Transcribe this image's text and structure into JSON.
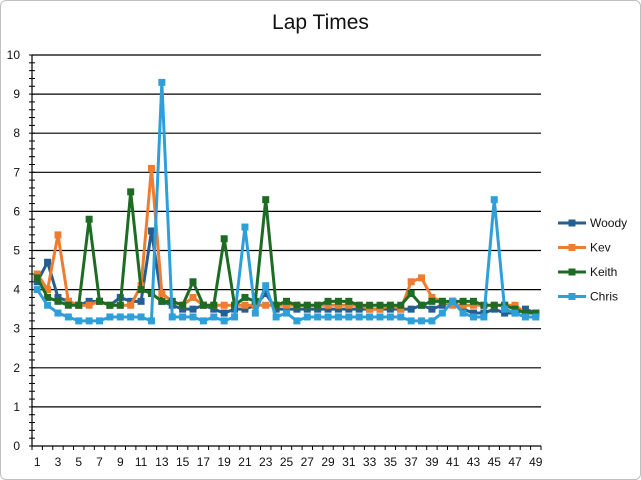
{
  "chart_data": {
    "type": "line",
    "title": "Lap Times",
    "xlabel": "",
    "ylabel": "",
    "ylim": [
      0,
      10
    ],
    "y_ticks": [
      0,
      1,
      2,
      3,
      4,
      5,
      6,
      7,
      8,
      9,
      10
    ],
    "x_tick_labels": [
      1,
      3,
      5,
      7,
      9,
      11,
      13,
      15,
      17,
      19,
      21,
      23,
      25,
      27,
      29,
      31,
      33,
      35,
      37,
      39,
      41,
      43,
      45,
      47,
      49
    ],
    "x": [
      1,
      2,
      3,
      4,
      5,
      6,
      7,
      8,
      9,
      10,
      11,
      12,
      13,
      14,
      15,
      16,
      17,
      18,
      19,
      20,
      21,
      22,
      23,
      24,
      25,
      26,
      27,
      28,
      29,
      30,
      31,
      32,
      33,
      34,
      35,
      36,
      37,
      38,
      39,
      40,
      41,
      42,
      43,
      44,
      45,
      46,
      47,
      48,
      49
    ],
    "grid": "horizontal major gridlines",
    "legend_position": "right",
    "series": [
      {
        "name": "Woody",
        "color": "#255e91",
        "values": [
          4.2,
          4.7,
          3.8,
          3.7,
          3.6,
          3.7,
          3.7,
          3.6,
          3.8,
          3.7,
          3.7,
          5.5,
          3.7,
          3.6,
          3.5,
          3.5,
          3.6,
          3.5,
          3.4,
          3.5,
          3.5,
          3.6,
          3.9,
          3.5,
          3.5,
          3.5,
          3.5,
          3.5,
          3.5,
          3.5,
          3.5,
          3.5,
          3.5,
          3.5,
          3.5,
          3.5,
          3.5,
          3.6,
          3.5,
          3.6,
          3.7,
          3.5,
          3.4,
          3.4,
          3.5,
          3.4,
          3.4,
          3.5,
          3.4
        ]
      },
      {
        "name": "Kev",
        "color": "#ed7d31",
        "values": [
          4.4,
          4.0,
          5.4,
          3.7,
          3.6,
          3.6,
          3.7,
          3.6,
          3.6,
          3.6,
          4.1,
          7.1,
          3.9,
          3.7,
          3.6,
          3.8,
          3.6,
          3.6,
          3.6,
          3.6,
          3.6,
          3.6,
          3.6,
          3.6,
          3.6,
          3.6,
          3.6,
          3.6,
          3.6,
          3.6,
          3.6,
          3.6,
          3.5,
          3.5,
          3.6,
          3.5,
          4.2,
          4.3,
          3.8,
          3.7,
          3.6,
          3.6,
          3.6,
          3.6,
          3.6,
          3.6,
          3.6,
          3.4,
          3.4
        ]
      },
      {
        "name": "Keith",
        "color": "#1e6b24",
        "values": [
          4.3,
          3.8,
          3.7,
          3.6,
          3.6,
          5.8,
          3.7,
          3.6,
          3.6,
          6.5,
          4.0,
          3.9,
          3.7,
          3.7,
          3.6,
          4.2,
          3.6,
          3.6,
          5.3,
          3.6,
          3.8,
          3.7,
          6.3,
          3.6,
          3.7,
          3.6,
          3.6,
          3.6,
          3.7,
          3.7,
          3.7,
          3.6,
          3.6,
          3.6,
          3.6,
          3.6,
          3.9,
          3.6,
          3.7,
          3.7,
          3.7,
          3.7,
          3.7,
          3.6,
          3.6,
          3.6,
          3.5,
          3.4,
          3.4
        ]
      },
      {
        "name": "Chris",
        "color": "#2e9fd8",
        "values": [
          4.0,
          3.6,
          3.4,
          3.3,
          3.2,
          3.2,
          3.2,
          3.3,
          3.3,
          3.3,
          3.3,
          3.2,
          9.3,
          3.3,
          3.3,
          3.3,
          3.2,
          3.3,
          3.2,
          3.3,
          5.6,
          3.4,
          4.1,
          3.3,
          3.4,
          3.2,
          3.3,
          3.3,
          3.3,
          3.3,
          3.3,
          3.3,
          3.3,
          3.3,
          3.3,
          3.3,
          3.2,
          3.2,
          3.2,
          3.4,
          3.7,
          3.4,
          3.3,
          3.3,
          6.3,
          3.5,
          3.4,
          3.3,
          3.3
        ]
      }
    ]
  }
}
